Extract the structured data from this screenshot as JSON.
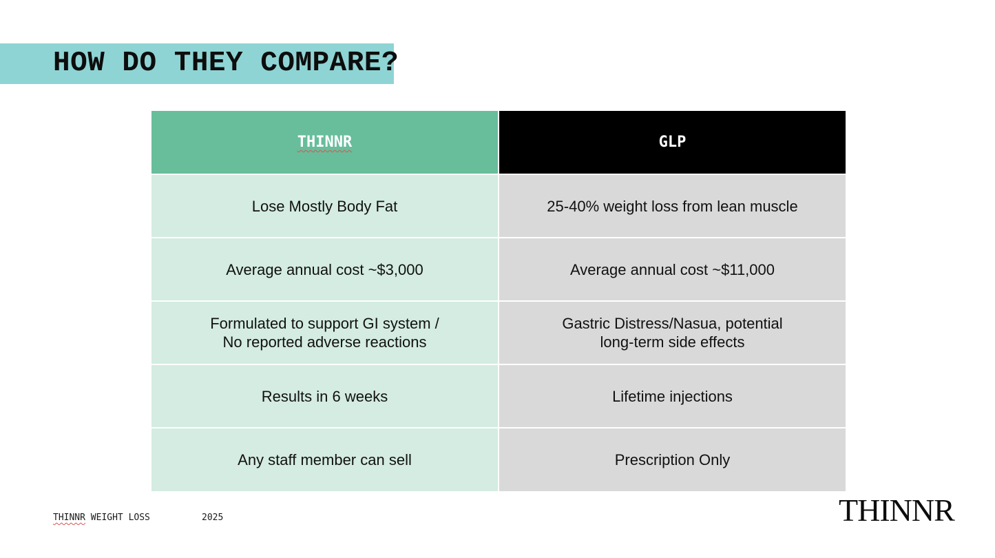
{
  "slide": {
    "title": "HOW DO THEY COMPARE?",
    "colors": {
      "title_band": "#8fd4d4",
      "thinnr_header": "#68bd9b",
      "thinnr_cell": "#d4ece1",
      "glp_header": "#000000",
      "glp_cell": "#d9d9d9"
    }
  },
  "table": {
    "headers": [
      "THINNR",
      "GLP"
    ],
    "rows": [
      [
        "Lose Mostly Body Fat",
        "25-40% weight loss from lean muscle"
      ],
      [
        "Average annual cost ~$3,000",
        "Average annual cost ~$11,000"
      ],
      [
        "Formulated to support GI system /\nNo reported adverse reactions",
        "Gastric Distress/Nasua, potential\nlong-term side effects"
      ],
      [
        "Results in 6 weeks",
        "Lifetime injections"
      ],
      [
        "Any staff member can sell",
        "Prescription Only"
      ]
    ]
  },
  "footer": {
    "brand_first": "THINNR",
    "brand_rest": " WEIGHT LOSS",
    "year": "2025",
    "logo": "THINNR"
  }
}
